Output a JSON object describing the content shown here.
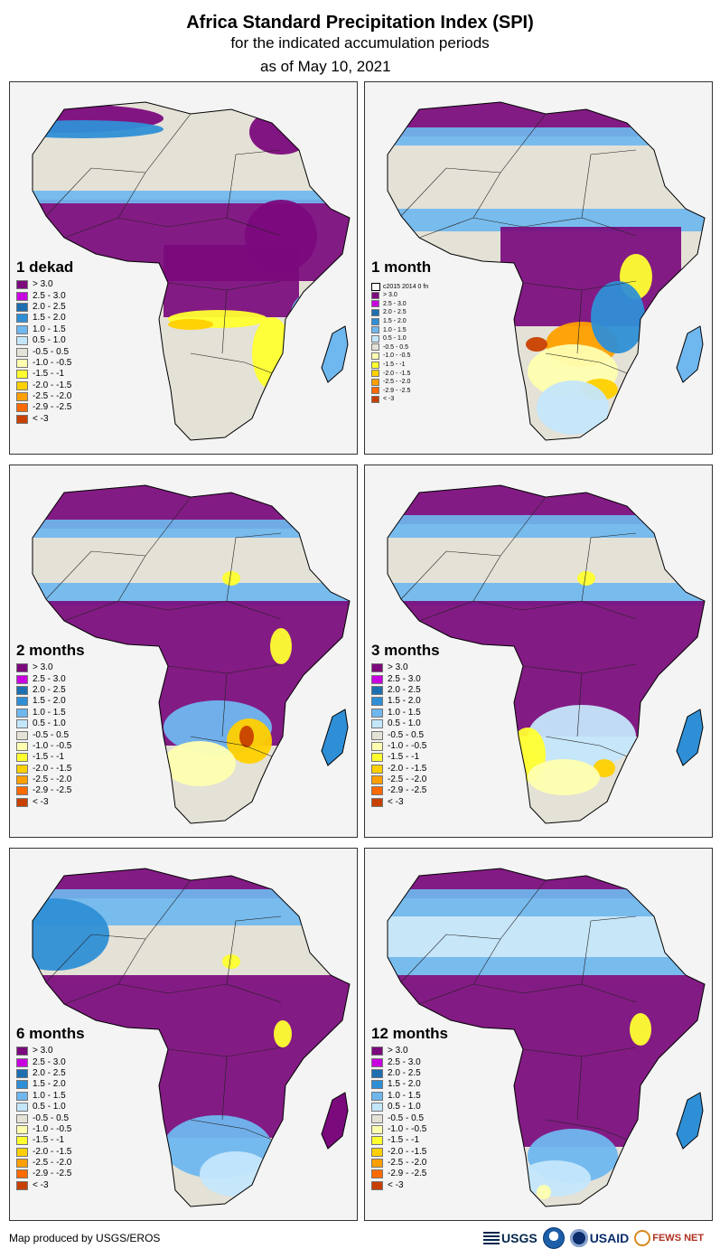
{
  "title": "Africa Standard Precipitation Index (SPI)",
  "subtitle": "for the indicated accumulation periods",
  "date_line": "as of May 10, 2021",
  "legend_colors": [
    "#7b0a7d",
    "#c800e0",
    "#1d6fb0",
    "#2f8fd6",
    "#6fb7ef",
    "#c4e6fb",
    "#e4e1d6",
    "#ffffb0",
    "#ffff30",
    "#ffd000",
    "#ffa000",
    "#ff6a00",
    "#c84000"
  ],
  "legend_labels": [
    "> 3.0",
    "2.5 - 3.0",
    "2.0 - 2.5",
    "1.5 - 2.0",
    "1.0 - 1.5",
    "0.5 - 1.0",
    "-0.5 - 0.5",
    "-1.0 - -0.5",
    "-1.5 - -1",
    "-2.0 - -1.5",
    "-2.5 - -2.0",
    "-2.9 - -2.5",
    "< -3"
  ],
  "legend_labels_1month": [
    "> 3.0",
    "2.5 - 3.0",
    "2.0 - 2.5",
    "1.5 - 2.0",
    "1.0 - 1.5",
    "0.5 - 1.0",
    "-0.5 - 0.5",
    "-1.0 - -0.5",
    "-1.5 - -1",
    "-2.0 - -1.5",
    "-2.5 - -2.0",
    "-2.9 - -2.5",
    "< -3"
  ],
  "legend_note_1month": "c2015  2014  0  fn",
  "panels": [
    {
      "period": "1 dekad"
    },
    {
      "period": "1 month"
    },
    {
      "period": "2 months"
    },
    {
      "period": "3 months"
    },
    {
      "period": "6 months"
    },
    {
      "period": "12 months"
    }
  ],
  "footer": "Map produced by USGS/EROS",
  "logos": {
    "usgs": "USGS",
    "usaid": "USAID",
    "fews": "FEWS NET"
  }
}
